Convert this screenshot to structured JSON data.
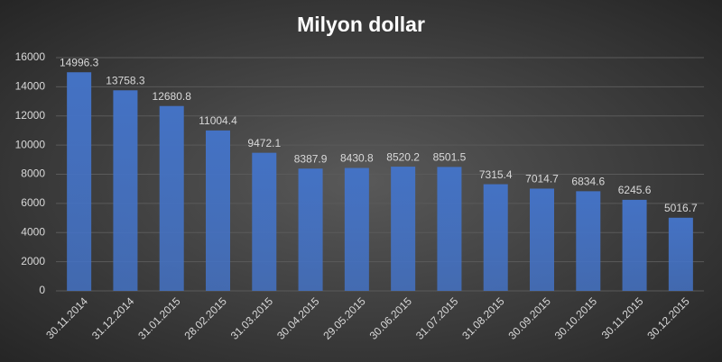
{
  "chart_data": {
    "type": "bar",
    "title": "Milyon dollar",
    "categories": [
      "30.11.2014",
      "31.12.2014",
      "31.01.2015",
      "28.02.2015",
      "31.03.2015",
      "30.04.2015",
      "29.05.2015",
      "30.06.2015",
      "31.07.2015",
      "31.08.2015",
      "30.09.2015",
      "30.10.2015",
      "30.11.2015",
      "30.12.2015"
    ],
    "values": [
      14996.3,
      13758.3,
      12680.8,
      11004.4,
      9472.1,
      8387.9,
      8430.8,
      8520.2,
      8501.5,
      7315.4,
      7014.7,
      6834.6,
      6245.6,
      5016.7
    ],
    "color": "#4472c4",
    "ylim": [
      0,
      16000
    ],
    "yticks": [
      0,
      2000,
      4000,
      6000,
      8000,
      10000,
      12000,
      14000,
      16000
    ],
    "grid": true
  }
}
